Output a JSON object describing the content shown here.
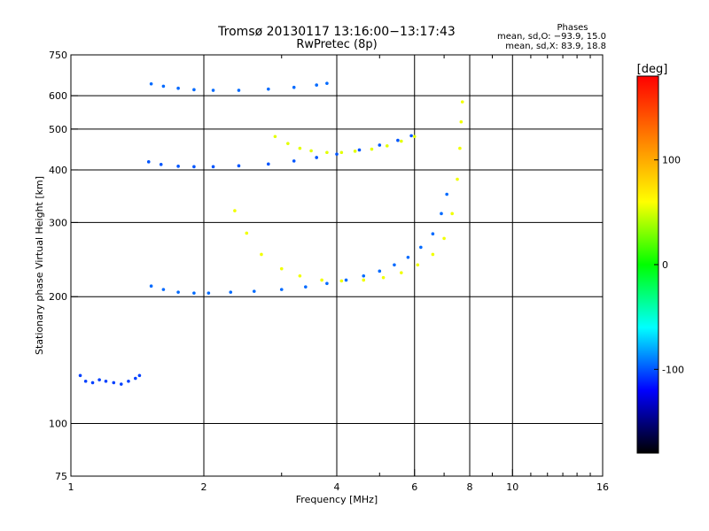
{
  "chart_data": {
    "type": "scatter",
    "title": "Tromsø 20130117 13:16:00−13:17:43",
    "subtitle": "RwPretec (8p)",
    "xlabel": "Frequency [MHz]",
    "ylabel": "Stationary phase Virtual Height [km]",
    "x_scale": "log",
    "y_scale": "log",
    "xlim": [
      1,
      16
    ],
    "ylim": [
      75,
      750
    ],
    "x_ticks": [
      1,
      2,
      4,
      6,
      8,
      10,
      16
    ],
    "x_minor_ticks": [
      3,
      5,
      7,
      9,
      11,
      12,
      13,
      14,
      15
    ],
    "y_ticks": [
      75,
      100,
      200,
      300,
      400,
      500,
      600,
      750
    ],
    "grid": true,
    "phases_box": {
      "title": "Phases",
      "line_o": "mean, sd,O: −93.9, 15.0",
      "line_x": "mean, sd,X:  83.9, 18.8"
    },
    "colorbar": {
      "label": "[deg]",
      "range": [
        -180,
        180
      ],
      "ticks": [
        100,
        0,
        -100
      ],
      "colors": [
        "#ff0000",
        "#ff8000",
        "#ffff00",
        "#00ff00",
        "#00ffff",
        "#0000ff",
        "#000000"
      ]
    },
    "series": [
      {
        "trace": "o-trace-F2-lower",
        "phase": -95,
        "x": [
          1.52,
          1.62,
          1.75,
          1.9,
          2.05,
          2.3,
          2.6,
          3.0,
          3.4,
          3.8,
          4.2,
          4.6,
          5.0,
          5.4,
          5.8,
          6.2,
          6.6,
          6.9,
          7.1
        ],
        "y": [
          212,
          208,
          205,
          204,
          204,
          205,
          206,
          208,
          211,
          215,
          219,
          224,
          230,
          238,
          248,
          262,
          282,
          315,
          350
        ]
      },
      {
        "trace": "x-trace-F2",
        "phase": 85,
        "x": [
          2.35,
          2.5,
          2.7,
          3.0,
          3.3,
          3.7,
          4.1,
          4.6,
          5.1,
          5.6,
          6.1,
          6.6,
          7.0,
          7.3,
          7.5,
          7.6,
          7.65,
          7.7
        ],
        "y": [
          320,
          283,
          252,
          233,
          224,
          219,
          218,
          219,
          222,
          228,
          238,
          252,
          275,
          315,
          380,
          450,
          520,
          580
        ]
      },
      {
        "trace": "o-trace-F2-upper",
        "phase": -100,
        "x": [
          1.5,
          1.6,
          1.75,
          1.9,
          2.1,
          2.4,
          2.8,
          3.2,
          3.6,
          4.0,
          4.5,
          5.0,
          5.5,
          5.9
        ],
        "y": [
          418,
          412,
          408,
          407,
          407,
          409,
          413,
          420,
          428,
          436,
          446,
          458,
          470,
          482
        ]
      },
      {
        "trace": "x-trace-F2-upper",
        "phase": 80,
        "x": [
          2.9,
          3.1,
          3.3,
          3.5,
          3.8,
          4.1,
          4.4,
          4.8,
          5.2,
          5.6,
          6.0
        ],
        "y": [
          480,
          462,
          450,
          444,
          440,
          440,
          443,
          448,
          456,
          468,
          480
        ]
      },
      {
        "trace": "o-trace-2F",
        "phase": -95,
        "x": [
          1.52,
          1.62,
          1.75,
          1.9,
          2.1,
          2.4,
          2.8,
          3.2,
          3.6,
          3.8
        ],
        "y": [
          640,
          632,
          625,
          620,
          618,
          618,
          622,
          628,
          636,
          642
        ]
      },
      {
        "trace": "E-spread",
        "phase": -105,
        "x": [
          1.05,
          1.08,
          1.12,
          1.16,
          1.2,
          1.25,
          1.3,
          1.35,
          1.4,
          1.43
        ],
        "y": [
          130,
          126,
          125,
          127,
          126,
          125,
          124,
          126,
          128,
          130
        ]
      }
    ]
  }
}
